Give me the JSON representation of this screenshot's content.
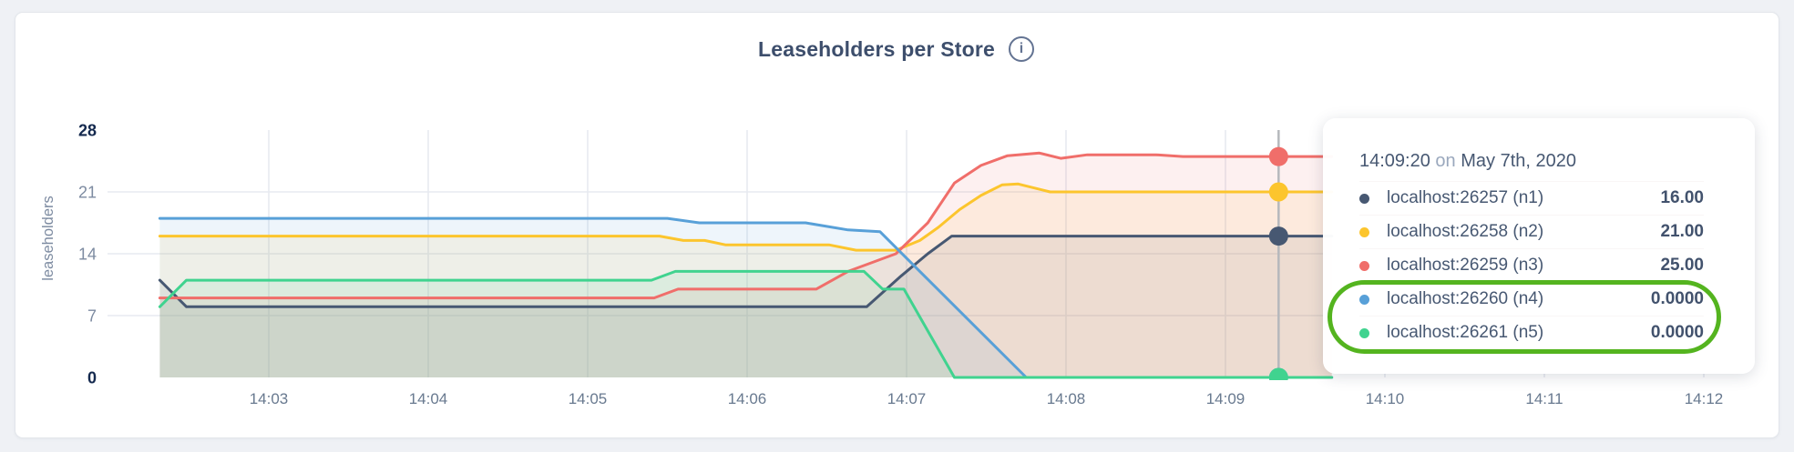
{
  "page": {
    "background": "#eff1f5"
  },
  "header": {
    "title": "Leaseholders per Store",
    "info_icon": "i"
  },
  "chart_data": {
    "type": "area",
    "title": "Leaseholders per Store",
    "xlabel": "",
    "ylabel": "leaseholders",
    "ylim": [
      0,
      28
    ],
    "yticks": [
      0,
      7,
      14,
      21,
      28
    ],
    "grid": true,
    "legend_position": "tooltip-overlay",
    "x_time_origin": "14:02:00",
    "x_ticks": [
      {
        "label": "14:03",
        "t": 60
      },
      {
        "label": "14:04",
        "t": 120
      },
      {
        "label": "14:05",
        "t": 180
      },
      {
        "label": "14:06",
        "t": 240
      },
      {
        "label": "14:07",
        "t": 300
      },
      {
        "label": "14:08",
        "t": 360
      },
      {
        "label": "14:09",
        "t": 420
      },
      {
        "label": "14:10",
        "t": 480
      },
      {
        "label": "14:11",
        "t": 540
      },
      {
        "label": "14:12",
        "t": 600
      }
    ],
    "series": [
      {
        "name": "localhost:26257 (n1)",
        "color": "#475872",
        "points": [
          [
            19,
            11
          ],
          [
            29,
            8
          ],
          [
            285,
            8
          ],
          [
            298,
            11.5
          ],
          [
            308,
            14
          ],
          [
            317,
            16
          ],
          [
            460,
            16
          ]
        ]
      },
      {
        "name": "localhost:26258 (n2)",
        "color": "#fcc52d",
        "points": [
          [
            19,
            16
          ],
          [
            207,
            16
          ],
          [
            216,
            15.5
          ],
          [
            224,
            15.5
          ],
          [
            232,
            15
          ],
          [
            271,
            15
          ],
          [
            281,
            14.4
          ],
          [
            296,
            14.4
          ],
          [
            305,
            15.5
          ],
          [
            312,
            17
          ],
          [
            320,
            19
          ],
          [
            328,
            20.6
          ],
          [
            336,
            21.8
          ],
          [
            342,
            21.9
          ],
          [
            354,
            21
          ],
          [
            460,
            21
          ]
        ]
      },
      {
        "name": "localhost:26259 (n3)",
        "color": "#f06e6a",
        "points": [
          [
            19,
            9
          ],
          [
            205,
            9
          ],
          [
            214,
            10
          ],
          [
            266,
            10
          ],
          [
            278,
            12
          ],
          [
            296,
            14
          ],
          [
            308,
            17.5
          ],
          [
            318,
            22
          ],
          [
            328,
            24
          ],
          [
            338,
            25.1
          ],
          [
            350,
            25.4
          ],
          [
            358,
            24.8
          ],
          [
            368,
            25.2
          ],
          [
            394,
            25.2
          ],
          [
            404,
            25
          ],
          [
            460,
            25
          ]
        ]
      },
      {
        "name": "localhost:26260 (n4)",
        "color": "#58a0d8",
        "points": [
          [
            19,
            18
          ],
          [
            210,
            18
          ],
          [
            222,
            17.5
          ],
          [
            262,
            17.5
          ],
          [
            278,
            16.7
          ],
          [
            290,
            16.5
          ],
          [
            345,
            0
          ],
          [
            460,
            0
          ]
        ]
      },
      {
        "name": "localhost:26261 (n5)",
        "color": "#40d38f",
        "points": [
          [
            19,
            8
          ],
          [
            29,
            11
          ],
          [
            204,
            11
          ],
          [
            213,
            12
          ],
          [
            284,
            12
          ],
          [
            291,
            10
          ],
          [
            299,
            10
          ],
          [
            318,
            0
          ],
          [
            460,
            0
          ]
        ]
      }
    ],
    "fill_opacity": 0.1,
    "hover": {
      "time_sec": 440,
      "line_color": "#b5b8bc",
      "dot_radius": 10.5
    },
    "grid_color": "#e7eaf0"
  },
  "tooltip": {
    "time": "14:09:20",
    "conjunction": "on",
    "date": "May 7th, 2020",
    "rows": [
      {
        "label": "localhost:26257 (n1)",
        "value": "16.00",
        "color": "#475872"
      },
      {
        "label": "localhost:26258 (n2)",
        "value": "21.00",
        "color": "#fcc52d"
      },
      {
        "label": "localhost:26259 (n3)",
        "value": "25.00",
        "color": "#f06e6a"
      },
      {
        "label": "localhost:26260 (n4)",
        "value": "0.0000",
        "color": "#58a0d8"
      },
      {
        "label": "localhost:26261 (n5)",
        "value": "0.0000",
        "color": "#40d38f"
      }
    ],
    "highlight_rows": [
      3,
      4
    ],
    "highlight_color": "#54b41f"
  }
}
